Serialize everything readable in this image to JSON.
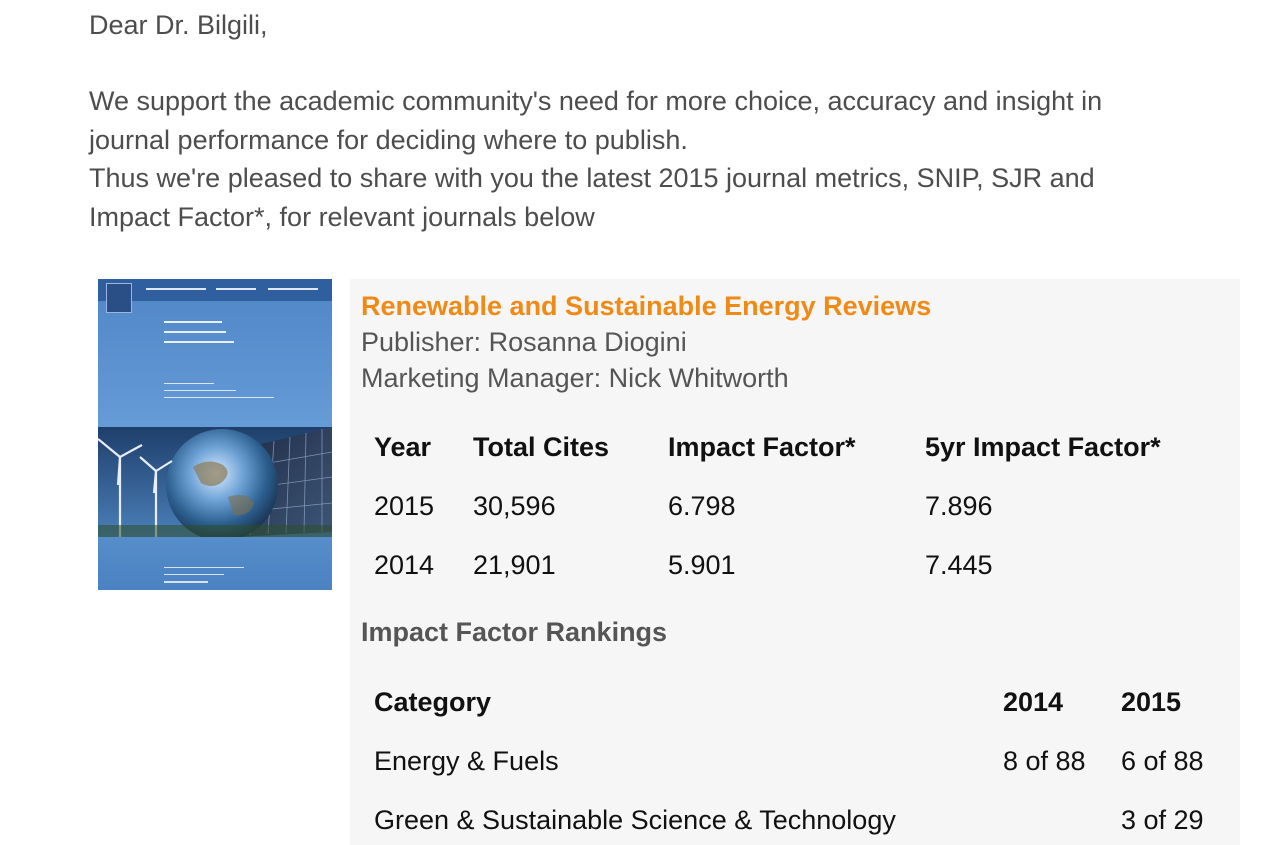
{
  "email": {
    "greeting": "Dear Dr. Bilgili,",
    "intro_lines": [
      "We support the academic community's need for more choice, accuracy and insight in",
      "journal performance for deciding where to publish.",
      "Thus we're pleased to share with you the latest 2015 journal metrics, SNIP, SJR and",
      "Impact Factor*, for relevant journals below"
    ]
  },
  "journal": {
    "title": "Renewable and Sustainable Energy Reviews",
    "publisher": "Publisher: Rosanna Diogini",
    "marketing_manager": "Marketing Manager: Nick Whitworth",
    "cover_icon": "journal-cover-image",
    "title_color": "#f08a16"
  },
  "metrics": {
    "headers": [
      "Year",
      "Total Cites",
      "Impact Factor*",
      "5yr Impact Factor*"
    ],
    "rows": [
      [
        "2015",
        "30,596",
        "6.798",
        "7.896"
      ],
      [
        "2014",
        "21,901",
        "5.901",
        "7.445"
      ]
    ]
  },
  "rankings": {
    "heading": "Impact Factor Rankings",
    "headers": [
      "Category",
      "2014",
      "2015"
    ],
    "rows": [
      [
        "Energy & Fuels",
        "8 of 88",
        "6 of 88"
      ],
      [
        "Green & Sustainable Science & Technology",
        "",
        "3 of 29"
      ]
    ]
  }
}
